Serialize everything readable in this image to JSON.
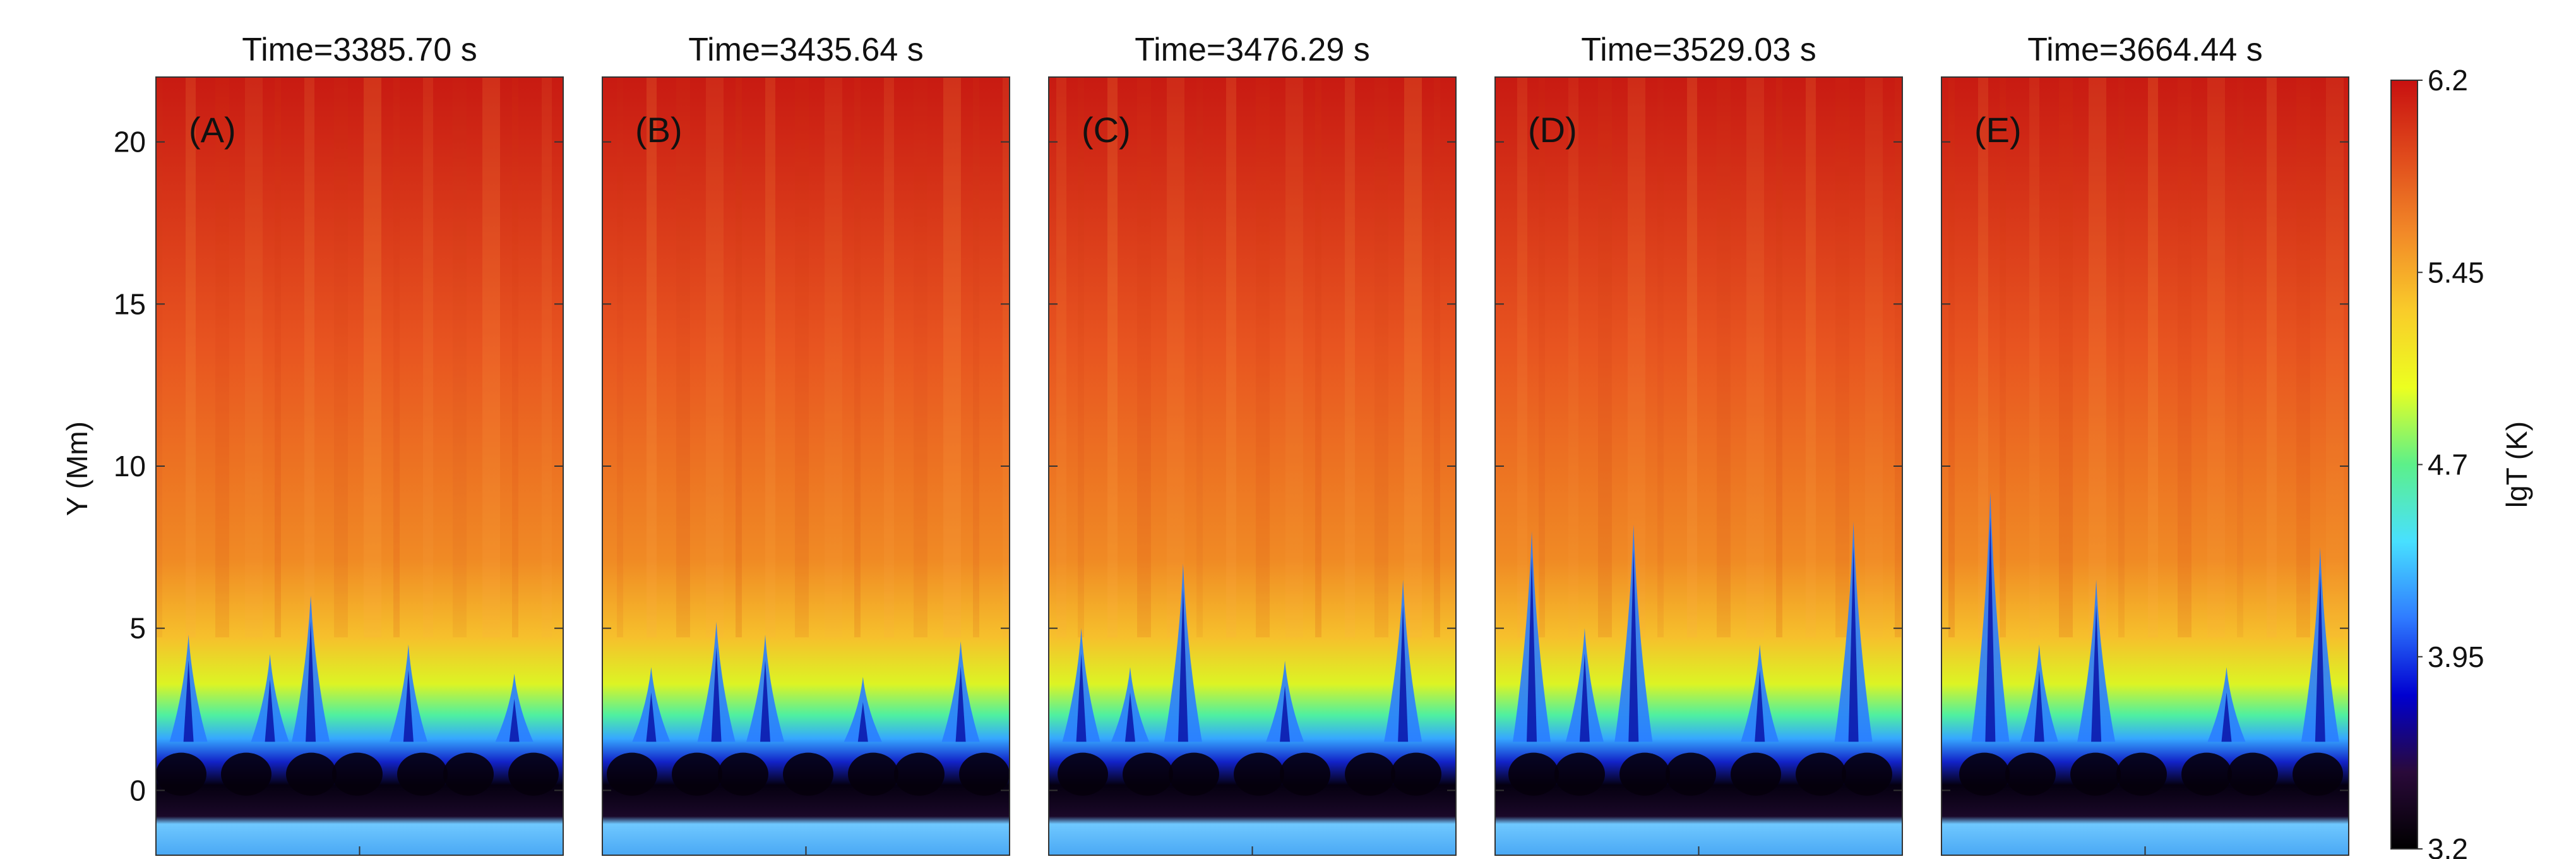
{
  "chart_data": {
    "type": "heatmap",
    "ylabel": "Y (Mm)",
    "ylim": [
      -2,
      22
    ],
    "yticks": [
      0,
      5,
      10,
      15,
      20
    ],
    "colorbar": {
      "label": "lgT (K)",
      "range": [
        3.2,
        6.2
      ],
      "ticks": [
        "6.2",
        "5.45",
        "4.7",
        "3.95",
        "3.2"
      ],
      "colors": [
        "#000000",
        "#2a0a3a",
        "#0000d0",
        "#2f7bff",
        "#48e0ff",
        "#5cf08a",
        "#ecff20",
        "#f9cc2a",
        "#f28a28",
        "#e04b1c",
        "#c81010"
      ]
    },
    "panels": [
      {
        "label": "(A)",
        "title": "Time=3385.70 s",
        "spikes": [
          {
            "x": 0.38,
            "h": 6.0
          },
          {
            "x": 0.08,
            "h": 4.8
          },
          {
            "x": 0.62,
            "h": 4.5
          },
          {
            "x": 0.28,
            "h": 4.2
          },
          {
            "x": 0.88,
            "h": 3.6
          }
        ]
      },
      {
        "label": "(B)",
        "title": "Time=3435.64 s",
        "spikes": [
          {
            "x": 0.28,
            "h": 5.2
          },
          {
            "x": 0.4,
            "h": 4.8
          },
          {
            "x": 0.88,
            "h": 4.6
          },
          {
            "x": 0.12,
            "h": 3.8
          },
          {
            "x": 0.64,
            "h": 3.5
          }
        ]
      },
      {
        "label": "(C)",
        "title": "Time=3476.29 s",
        "spikes": [
          {
            "x": 0.33,
            "h": 7.0
          },
          {
            "x": 0.87,
            "h": 6.5
          },
          {
            "x": 0.08,
            "h": 5.0
          },
          {
            "x": 0.58,
            "h": 4.0
          },
          {
            "x": 0.2,
            "h": 3.8
          }
        ]
      },
      {
        "label": "(D)",
        "title": "Time=3529.03 s",
        "spikes": [
          {
            "x": 0.09,
            "h": 8.0
          },
          {
            "x": 0.34,
            "h": 8.2
          },
          {
            "x": 0.88,
            "h": 8.3
          },
          {
            "x": 0.22,
            "h": 5.0
          },
          {
            "x": 0.65,
            "h": 4.5
          }
        ]
      },
      {
        "label": "(E)",
        "title": "Time=3664.44 s",
        "spikes": [
          {
            "x": 0.12,
            "h": 9.2
          },
          {
            "x": 0.38,
            "h": 6.5
          },
          {
            "x": 0.93,
            "h": 7.5
          },
          {
            "x": 0.24,
            "h": 4.5
          },
          {
            "x": 0.7,
            "h": 3.8
          }
        ]
      }
    ]
  }
}
